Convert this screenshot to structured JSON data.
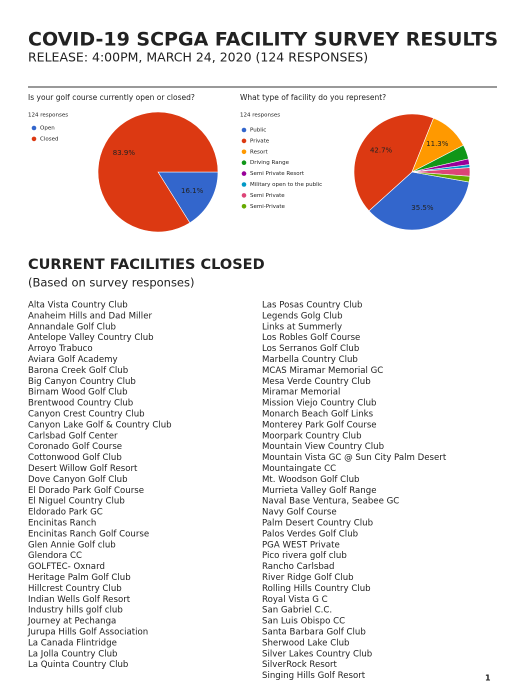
{
  "header": {
    "title": "COVID-19 SCPGA FACILITY SURVEY RESULTS",
    "subtitle": "RELEASE: 4:00PM, MARCH 24, 2020 (124 RESPONSES)"
  },
  "chart_data": [
    {
      "type": "pie",
      "title": "Is your golf course currently open or closed?",
      "subtitle": "124 responses",
      "categories": [
        "Open",
        "Closed"
      ],
      "values": [
        16.1,
        83.9
      ],
      "value_labels": [
        "16.1%",
        "83.9%"
      ],
      "colors": [
        "#3366cc",
        "#dc3912"
      ]
    },
    {
      "type": "pie",
      "title": "What type of facility do you represent?",
      "subtitle": "124 responses",
      "categories": [
        "Public",
        "Private",
        "Resort",
        "Driving Range",
        "Semi Private Resort",
        "Military open to the public",
        "Semi Private",
        "Semi-Private"
      ],
      "values": [
        35.5,
        42.7,
        11.3,
        4.0,
        1.6,
        0.8,
        2.4,
        1.6
      ],
      "value_labels": [
        "35.5%",
        "42.7%",
        "11.3%",
        null,
        null,
        null,
        null,
        null
      ],
      "colors": [
        "#3366cc",
        "#dc3912",
        "#ff9900",
        "#109618",
        "#990099",
        "#0099c6",
        "#dd4477",
        "#66aa00"
      ]
    }
  ],
  "section": {
    "title": "CURRENT FACILITIES CLOSED",
    "subtitle": "(Based on survey responses)",
    "columns": [
      [
        "Alta Vista Country Club",
        "Anaheim Hills and Dad Miller",
        "Annandale Golf Club",
        "Antelope Valley Country Club",
        "Arroyo Trabuco",
        "Aviara Golf Academy",
        "Barona Creek Golf Club",
        "Big Canyon Country Club",
        "Birnam Wood Golf Club",
        "Brentwood Country Club",
        "Canyon Crest Country Club",
        "Canyon Lake Golf & Country Club",
        "Carlsbad Golf Center",
        "Coronado Golf Course",
        "Cottonwood Golf Club",
        "Desert Willow Golf Resort",
        "Dove Canyon Golf Club",
        "El Dorado Park Golf Course",
        "El Niguel Country Club",
        "Eldorado Park GC",
        "Encinitas Ranch",
        "Encinitas Ranch Golf Course",
        "Glen Annie Golf club",
        "Glendora CC",
        "GOLFTEC- Oxnard",
        "Heritage Palm Golf Club",
        "Hillcrest Country Club",
        "Indian Wells Golf Resort",
        "Industry hills golf club",
        "Journey at Pechanga",
        "Jurupa Hills Golf Association",
        "La Canada Flintridge",
        "La Jolla Country Club",
        "La Quinta Country Club"
      ],
      [
        "Las Posas Country Club",
        "Legends Golg Club",
        "Links at Summerly",
        "Los Robles Golf Course",
        "Los Serranos Golf Club",
        "Marbella Country Club",
        "MCAS Miramar Memorial GC",
        "Mesa Verde Country Club",
        "Miramar Memorial",
        "Mission Viejo Country Club",
        "Monarch Beach Golf Links",
        "Monterey Park Golf Course",
        "Moorpark Country Club",
        "Mountain View Country Club",
        "Mountain Vista GC @ Sun City Palm Desert",
        "Mountaingate CC",
        "Mt. Woodson Golf Club",
        "Murrieta Valley Golf Range",
        "Naval Base Ventura, Seabee GC",
        "Navy Golf Course",
        "Palm Desert Country Club",
        "Palos Verdes Golf Club",
        "PGA WEST Private",
        "Pico rivera golf club",
        "Rancho Carlsbad",
        "River Ridge Golf Club",
        "Rolling Hills Country Club",
        "Royal Vista G C",
        "San Gabriel C.C.",
        "San Luis Obispo CC",
        "Santa Barbara Golf Club",
        "Sherwood Lake Club",
        "Silver Lakes Country Club",
        "SilverRock Resort",
        "Singing Hills Golf Resort"
      ]
    ]
  },
  "footer": {
    "page": "1"
  }
}
